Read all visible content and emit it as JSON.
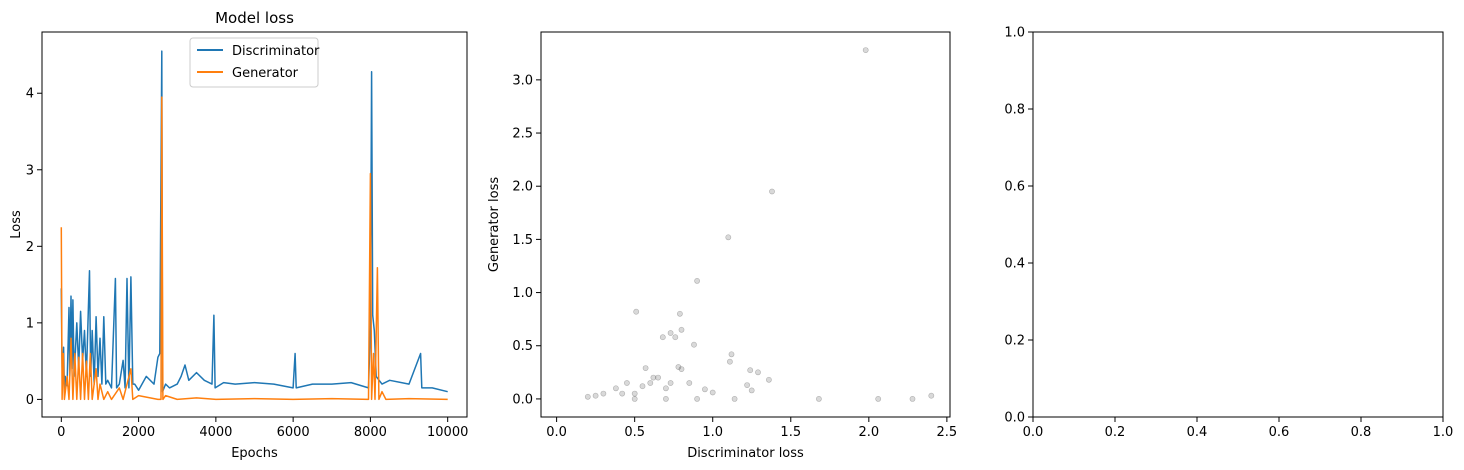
{
  "colors": {
    "discriminator": "#1f77b4",
    "generator": "#ff7f0e",
    "scatter": "#000000"
  },
  "chart_data": [
    {
      "type": "line",
      "title": "Model loss",
      "xlabel": "Epochs",
      "ylabel": "Loss",
      "xlim": [
        -500,
        10500
      ],
      "ylim": [
        -0.23,
        4.8
      ],
      "xticks": [
        0,
        2000,
        4000,
        6000,
        8000,
        10000
      ],
      "yticks": [
        0,
        1,
        2,
        3,
        4
      ],
      "legend": "top-center",
      "series": [
        {
          "name": "Discriminator",
          "color": "#1f77b4",
          "points": [
            [
              0,
              1.45
            ],
            [
              15,
              0.6
            ],
            [
              30,
              0.25
            ],
            [
              60,
              0.68
            ],
            [
              80,
              0.1
            ],
            [
              100,
              0.3
            ],
            [
              150,
              0.18
            ],
            [
              200,
              1.2
            ],
            [
              220,
              0.3
            ],
            [
              250,
              1.35
            ],
            [
              280,
              0.4
            ],
            [
              300,
              1.3
            ],
            [
              330,
              0.3
            ],
            [
              400,
              1.0
            ],
            [
              450,
              0.4
            ],
            [
              500,
              1.15
            ],
            [
              550,
              0.5
            ],
            [
              600,
              0.9
            ],
            [
              650,
              0.3
            ],
            [
              700,
              1.2
            ],
            [
              730,
              1.68
            ],
            [
              760,
              0.3
            ],
            [
              800,
              0.9
            ],
            [
              850,
              0.2
            ],
            [
              900,
              1.08
            ],
            [
              950,
              0.3
            ],
            [
              1000,
              0.8
            ],
            [
              1050,
              0.2
            ],
            [
              1100,
              1.08
            ],
            [
              1150,
              0.2
            ],
            [
              1200,
              0.25
            ],
            [
              1300,
              0.15
            ],
            [
              1400,
              1.58
            ],
            [
              1430,
              0.15
            ],
            [
              1500,
              0.2
            ],
            [
              1600,
              0.51
            ],
            [
              1650,
              0.15
            ],
            [
              1700,
              1.58
            ],
            [
              1750,
              0.15
            ],
            [
              1800,
              1.6
            ],
            [
              1850,
              0.2
            ],
            [
              1900,
              0.2
            ],
            [
              2000,
              0.12
            ],
            [
              2200,
              0.3
            ],
            [
              2400,
              0.2
            ],
            [
              2500,
              0.55
            ],
            [
              2550,
              0.6
            ],
            [
              2600,
              4.55
            ],
            [
              2620,
              0.1
            ],
            [
              2700,
              0.2
            ],
            [
              2800,
              0.15
            ],
            [
              3000,
              0.2
            ],
            [
              3100,
              0.3
            ],
            [
              3200,
              0.45
            ],
            [
              3300,
              0.25
            ],
            [
              3500,
              0.35
            ],
            [
              3700,
              0.25
            ],
            [
              3900,
              0.2
            ],
            [
              3950,
              1.1
            ],
            [
              3980,
              0.15
            ],
            [
              4200,
              0.22
            ],
            [
              4500,
              0.2
            ],
            [
              5000,
              0.22
            ],
            [
              5500,
              0.2
            ],
            [
              6000,
              0.15
            ],
            [
              6050,
              0.6
            ],
            [
              6080,
              0.15
            ],
            [
              6500,
              0.2
            ],
            [
              7000,
              0.2
            ],
            [
              7500,
              0.22
            ],
            [
              7950,
              0.15
            ],
            [
              8000,
              0.95
            ],
            [
              8030,
              4.28
            ],
            [
              8060,
              1.1
            ],
            [
              8100,
              0.9
            ],
            [
              8150,
              0.3
            ],
            [
              8300,
              0.2
            ],
            [
              8500,
              0.25
            ],
            [
              9000,
              0.2
            ],
            [
              9300,
              0.6
            ],
            [
              9330,
              0.15
            ],
            [
              9600,
              0.15
            ],
            [
              10000,
              0.1
            ]
          ]
        },
        {
          "name": "Generator",
          "color": "#ff7f0e",
          "points": [
            [
              0,
              2.25
            ],
            [
              20,
              0.0
            ],
            [
              50,
              0.6
            ],
            [
              80,
              0.0
            ],
            [
              150,
              0.3
            ],
            [
              200,
              0.0
            ],
            [
              250,
              0.8
            ],
            [
              300,
              0.0
            ],
            [
              350,
              0.6
            ],
            [
              400,
              0.0
            ],
            [
              450,
              0.55
            ],
            [
              500,
              0.0
            ],
            [
              550,
              0.6
            ],
            [
              600,
              0.0
            ],
            [
              650,
              0.5
            ],
            [
              700,
              0.0
            ],
            [
              750,
              0.6
            ],
            [
              800,
              0.0
            ],
            [
              900,
              0.4
            ],
            [
              950,
              0.0
            ],
            [
              1000,
              0.2
            ],
            [
              1100,
              0.0
            ],
            [
              1200,
              0.1
            ],
            [
              1300,
              0.0
            ],
            [
              1500,
              0.15
            ],
            [
              1600,
              0.0
            ],
            [
              1800,
              0.4
            ],
            [
              1850,
              0.0
            ],
            [
              2000,
              0.05
            ],
            [
              2500,
              0.0
            ],
            [
              2580,
              0.0
            ],
            [
              2600,
              3.95
            ],
            [
              2630,
              0.0
            ],
            [
              2700,
              0.05
            ],
            [
              3000,
              0.0
            ],
            [
              3500,
              0.02
            ],
            [
              4000,
              0.0
            ],
            [
              5000,
              0.01
            ],
            [
              6000,
              0.0
            ],
            [
              7000,
              0.01
            ],
            [
              7950,
              0.0
            ],
            [
              8000,
              2.95
            ],
            [
              8030,
              0.0
            ],
            [
              8080,
              0.6
            ],
            [
              8120,
              0.0
            ],
            [
              8180,
              1.72
            ],
            [
              8220,
              0.0
            ],
            [
              8300,
              0.1
            ],
            [
              8400,
              0.0
            ],
            [
              9000,
              0.01
            ],
            [
              10000,
              0.0
            ]
          ]
        }
      ]
    },
    {
      "type": "scatter",
      "title": "",
      "xlabel": "Discriminator loss",
      "ylabel": "Generator loss",
      "xlim": [
        -0.1,
        2.52
      ],
      "ylim": [
        -0.17,
        3.45
      ],
      "xticks": [
        0.0,
        0.5,
        1.0,
        1.5,
        2.0,
        2.5
      ],
      "yticks": [
        0.0,
        0.5,
        1.0,
        1.5,
        2.0,
        2.5,
        3.0
      ],
      "legend": "none",
      "points": [
        [
          1.98,
          3.28
        ],
        [
          1.38,
          1.95
        ],
        [
          1.1,
          1.52
        ],
        [
          0.9,
          1.11
        ],
        [
          0.51,
          0.82
        ],
        [
          0.79,
          0.8
        ],
        [
          0.73,
          0.62
        ],
        [
          0.76,
          0.58
        ],
        [
          0.8,
          0.65
        ],
        [
          0.68,
          0.58
        ],
        [
          0.57,
          0.29
        ],
        [
          0.62,
          0.2
        ],
        [
          0.88,
          0.51
        ],
        [
          1.12,
          0.42
        ],
        [
          1.11,
          0.35
        ],
        [
          1.29,
          0.25
        ],
        [
          1.24,
          0.27
        ],
        [
          1.36,
          0.18
        ],
        [
          1.22,
          0.13
        ],
        [
          1.25,
          0.08
        ],
        [
          1.0,
          0.06
        ],
        [
          0.95,
          0.09
        ],
        [
          0.85,
          0.15
        ],
        [
          0.78,
          0.3
        ],
        [
          0.8,
          0.28
        ],
        [
          0.73,
          0.15
        ],
        [
          0.7,
          0.1
        ],
        [
          0.65,
          0.2
        ],
        [
          0.45,
          0.15
        ],
        [
          0.38,
          0.1
        ],
        [
          0.42,
          0.05
        ],
        [
          0.5,
          0.05
        ],
        [
          0.55,
          0.12
        ],
        [
          0.6,
          0.15
        ],
        [
          0.3,
          0.05
        ],
        [
          0.25,
          0.03
        ],
        [
          0.2,
          0.02
        ],
        [
          1.68,
          0.0
        ],
        [
          2.06,
          0.0
        ],
        [
          2.28,
          0.0
        ],
        [
          2.4,
          0.03
        ],
        [
          1.14,
          0.0
        ],
        [
          0.9,
          0.0
        ],
        [
          0.7,
          0.0
        ],
        [
          0.5,
          0.0
        ]
      ]
    },
    {
      "type": "scatter",
      "title": "",
      "xlabel": "",
      "ylabel": "",
      "xlim": [
        0.0,
        1.0
      ],
      "ylim": [
        0.0,
        1.0
      ],
      "xticks": [
        0.0,
        0.2,
        0.4,
        0.6,
        0.8,
        1.0
      ],
      "yticks": [
        0.0,
        0.2,
        0.4,
        0.6,
        0.8,
        1.0
      ],
      "legend": "none",
      "points": []
    }
  ],
  "labels": {
    "p1_xticks": [
      "0",
      "2000",
      "4000",
      "6000",
      "8000",
      "10000"
    ],
    "p1_yticks": [
      "0",
      "1",
      "2",
      "3",
      "4"
    ],
    "p2_xticks": [
      "0.0",
      "0.5",
      "1.0",
      "1.5",
      "2.0",
      "2.5"
    ],
    "p2_yticks": [
      "0.0",
      "0.5",
      "1.0",
      "1.5",
      "2.0",
      "2.5",
      "3.0"
    ],
    "p3_xticks": [
      "0.0",
      "0.2",
      "0.4",
      "0.6",
      "0.8",
      "1.0"
    ],
    "p3_yticks": [
      "0.0",
      "0.2",
      "0.4",
      "0.6",
      "0.8",
      "1.0"
    ]
  }
}
